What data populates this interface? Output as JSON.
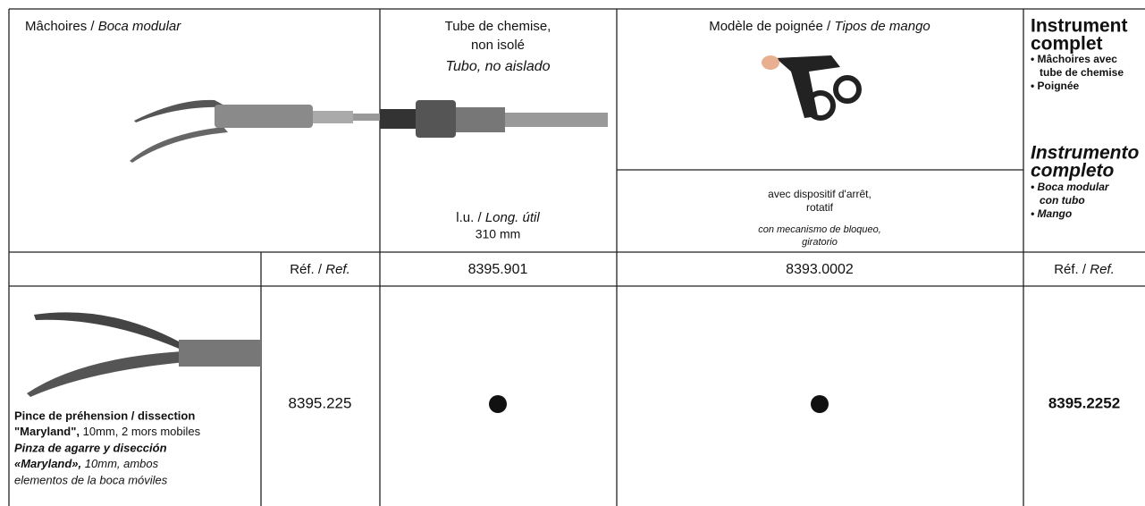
{
  "header": {
    "jaws": {
      "fr": "Mâchoires /",
      "es": "Boca modular"
    },
    "tube": {
      "fr": [
        "Tube de chemise,",
        "non isolé"
      ],
      "es": "Tubo, no aislado",
      "length_fr": "l.u. /",
      "length_es": "Long. útil",
      "length": "310 mm"
    },
    "handle": {
      "fr": "Modèle de poignée /",
      "es": "Tipos de mango",
      "desc_fr": [
        "avec dispositif d'arrêt,",
        "rotatif"
      ],
      "desc_es": [
        "con mecanismo de bloqueo,",
        "giratorio"
      ]
    },
    "complete": {
      "fr": [
        "Instrument",
        "complet"
      ],
      "fr_items": [
        "• Mâchoires avec",
        "tube de chemise",
        "• Poignée"
      ],
      "es": [
        "Instrumento",
        "completo"
      ],
      "es_items": [
        "• Boca modular",
        "con tubo",
        "• Mango"
      ]
    }
  },
  "ref_row": {
    "label_fr": "Réf. /",
    "label_es": "Ref.",
    "tube": "8395.901",
    "handle": "8393.0002",
    "complete_fr": "Réf. /",
    "complete_es": "Ref."
  },
  "rows": [
    {
      "fr_bold": [
        "Pince de préhension / dissection",
        "\"Maryland\","
      ],
      "fr_regular": "10mm, 2 mors mobiles",
      "es_bold": [
        "Pinza de agarre y disección",
        "«Maryland»,"
      ],
      "es_regular": [
        "10mm, ambos",
        "elementos de la boca móviles"
      ],
      "ref": "8395.225",
      "complete": "8395.2252"
    }
  ]
}
